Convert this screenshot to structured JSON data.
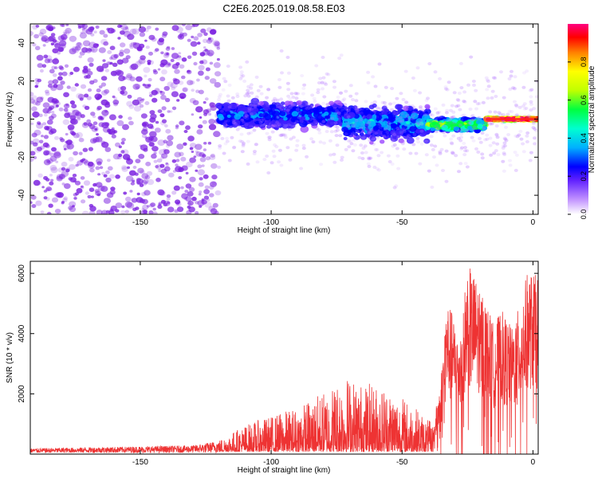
{
  "title": "C2E6.2025.019.08.58.E03",
  "colors": {
    "snr_line": "#ee3333",
    "spectrum_points": "#7a1fe0",
    "colormap": [
      "#ffffff",
      "#a050ff",
      "#4020ff",
      "#0000ff",
      "#00b0ff",
      "#00ffd0",
      "#00ff40",
      "#c0ff00",
      "#ffff00",
      "#ff8000",
      "#ff0000",
      "#ff0080"
    ]
  },
  "chart_data": [
    {
      "type": "heatmap",
      "name": "spectrogram",
      "xlabel": "Height of straight line (km)",
      "ylabel": "Frequency (Hz)",
      "xlim": [
        -192,
        2
      ],
      "ylim": [
        -50,
        50
      ],
      "xticks": [
        -150,
        -100,
        -50,
        0
      ],
      "yticks": [
        -40,
        -20,
        0,
        20,
        40
      ],
      "grid": false,
      "colorbar": {
        "label": "Normalized spectral amplitude",
        "range": [
          0,
          1
        ],
        "ticks": [
          "0.0",
          "0.2",
          "0.4",
          "0.6",
          "0.8"
        ],
        "tick_values": [
          0.0,
          0.2,
          0.4,
          0.6,
          0.8
        ]
      },
      "regions": [
        {
          "x": [
            -192,
            -120
          ],
          "freq_spread": [
            -50,
            50
          ],
          "amplitude": 0.05
        },
        {
          "x": [
            -120,
            -72
          ],
          "freq_center": 2,
          "freq_spread": [
            -6,
            10
          ],
          "amplitude": 0.25
        },
        {
          "x": [
            -72,
            -40
          ],
          "freq_center": -2,
          "freq_spread": [
            -14,
            8
          ],
          "amplitude": 0.3
        },
        {
          "x": [
            -40,
            -18
          ],
          "freq_center": -3,
          "freq_spread": [
            -6,
            2
          ],
          "amplitude": 0.55
        },
        {
          "x": [
            -18,
            2
          ],
          "freq_center": 0,
          "freq_spread": [
            -1,
            1
          ],
          "amplitude": 0.95
        }
      ]
    },
    {
      "type": "line",
      "name": "snr",
      "xlabel": "Height of straight line (km)",
      "ylabel": "SNR (10 * v/v)",
      "xlim": [
        -192,
        2
      ],
      "ylim": [
        0,
        6400
      ],
      "xticks": [
        -150,
        -100,
        -50,
        0
      ],
      "yticks": [
        2000,
        4000,
        6000
      ],
      "grid": false,
      "envelope": [
        {
          "x": -192,
          "y": 150
        },
        {
          "x": -160,
          "y": 200
        },
        {
          "x": -130,
          "y": 250
        },
        {
          "x": -120,
          "y": 400
        },
        {
          "x": -110,
          "y": 900
        },
        {
          "x": -100,
          "y": 1200
        },
        {
          "x": -90,
          "y": 1500
        },
        {
          "x": -80,
          "y": 2000
        },
        {
          "x": -72,
          "y": 2600
        },
        {
          "x": -65,
          "y": 2300
        },
        {
          "x": -55,
          "y": 2200
        },
        {
          "x": -45,
          "y": 1500
        },
        {
          "x": -38,
          "y": 900
        },
        {
          "x": -35,
          "y": 2800
        },
        {
          "x": -33,
          "y": 5200
        },
        {
          "x": -28,
          "y": 4000
        },
        {
          "x": -25,
          "y": 6300
        },
        {
          "x": -20,
          "y": 5600
        },
        {
          "x": -15,
          "y": 4300
        },
        {
          "x": -12,
          "y": 4800
        },
        {
          "x": -8,
          "y": 4200
        },
        {
          "x": -5,
          "y": 5000
        },
        {
          "x": -2,
          "y": 6100
        },
        {
          "x": 2,
          "y": 5900
        }
      ]
    }
  ]
}
